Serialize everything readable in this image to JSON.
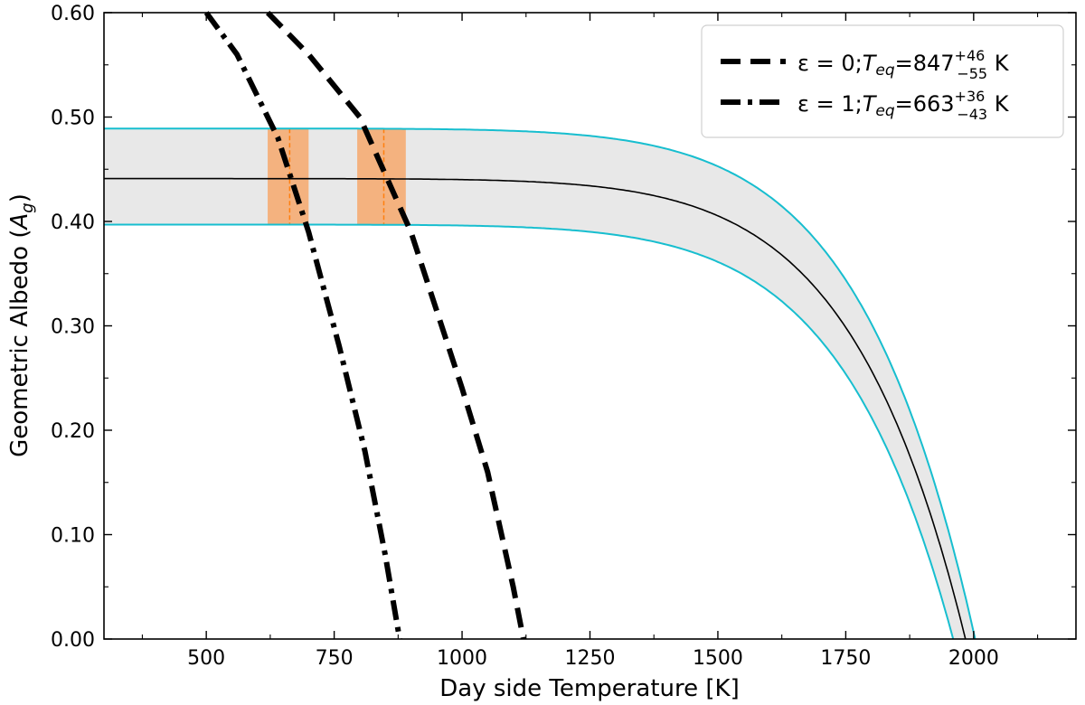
{
  "chart_data": {
    "type": "line",
    "xlabel": "Day side Temperature [K]",
    "ylabel_main": "Geometric Albedo (",
    "ylabel_symbol": "A",
    "ylabel_sub": "g",
    "ylabel_close": ")",
    "xlim": [
      300,
      2200
    ],
    "ylim": [
      0.0,
      0.6
    ],
    "x_ticks": [
      {
        "value": 500,
        "label": "500"
      },
      {
        "value": 750,
        "label": "750"
      },
      {
        "value": 1000,
        "label": "1000"
      },
      {
        "value": 1250,
        "label": "1250"
      },
      {
        "value": 1500,
        "label": "1500"
      },
      {
        "value": 1750,
        "label": "1750"
      },
      {
        "value": 2000,
        "label": "2000"
      }
    ],
    "x_minor_ticks": [
      375,
      625,
      875,
      1125,
      1375,
      1625,
      1875,
      2125
    ],
    "y_ticks": [
      {
        "value": 0.0,
        "label": "0.00"
      },
      {
        "value": 0.1,
        "label": "0.10"
      },
      {
        "value": 0.2,
        "label": "0.20"
      },
      {
        "value": 0.3,
        "label": "0.30"
      },
      {
        "value": 0.4,
        "label": "0.40"
      },
      {
        "value": 0.5,
        "label": "0.50"
      },
      {
        "value": 0.6,
        "label": "0.60"
      }
    ],
    "y_minor_ticks": [
      0.05,
      0.15,
      0.25,
      0.35,
      0.45,
      0.55
    ],
    "albedo_band": {
      "center": 0.441,
      "lower": 0.397,
      "upper": 0.489,
      "dropoff_temperature": [
        1984,
        1960,
        2003
      ],
      "fill_color": "#e8e8e8",
      "edge_color": "#17becf",
      "center_color": "#000000"
    },
    "series": [
      {
        "name_prefix": "ε = 0;",
        "symbol": "T",
        "symbol_sub": "eq",
        "value": "=847",
        "sup": "+46",
        "sub": "−55",
        "unit": " K",
        "style": "dashed",
        "points": [
          [
            620,
            0.6
          ],
          [
            700,
            0.56
          ],
          [
            800,
            0.5
          ],
          [
            900,
            0.39
          ],
          [
            1000,
            0.24
          ],
          [
            1050,
            0.16
          ],
          [
            1100,
            0.05
          ],
          [
            1120,
            0.0
          ]
        ]
      },
      {
        "name_prefix": "ε = 1;",
        "symbol": "T",
        "symbol_sub": "eq",
        "value": "=663",
        "sup": "+36",
        "sub": "−43",
        "unit": " K",
        "style": "dashdot",
        "points": [
          [
            500,
            0.6
          ],
          [
            560,
            0.56
          ],
          [
            640,
            0.48
          ],
          [
            700,
            0.39
          ],
          [
            760,
            0.28
          ],
          [
            810,
            0.18
          ],
          [
            850,
            0.08
          ],
          [
            878,
            0.0
          ]
        ]
      }
    ],
    "highlight_regions": [
      {
        "x_min": 620,
        "x_max": 700,
        "center": 663,
        "color": "#f4b27f",
        "line_color": "#ff7f0e"
      },
      {
        "x_min": 795,
        "x_max": 890,
        "center": 847,
        "color": "#f4b27f",
        "line_color": "#ff7f0e"
      }
    ],
    "legend_position": "top-right",
    "grid": false
  }
}
